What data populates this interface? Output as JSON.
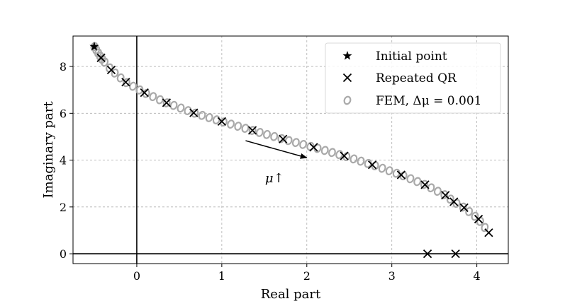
{
  "chart_data": {
    "type": "scatter",
    "xlabel": "Real part",
    "ylabel": "Imaginary part",
    "xlim": [
      -0.75,
      4.37
    ],
    "ylim": [
      -0.42,
      9.3
    ],
    "xticks": [
      0,
      1,
      2,
      3,
      4
    ],
    "yticks": [
      0,
      2,
      4,
      6,
      8
    ],
    "grid": true,
    "legend_position": "top-right",
    "reference_lines": {
      "x": 0,
      "y": 0
    },
    "annotation": {
      "text": "μ↑",
      "arrow_from": [
        1.28,
        4.83
      ],
      "arrow_to": [
        2.0,
        4.1
      ]
    },
    "series": [
      {
        "name": "Initial point",
        "marker": "star",
        "color": "#000000",
        "points": [
          [
            -0.5,
            8.85
          ]
        ]
      },
      {
        "name": "Repeated QR",
        "marker": "x",
        "color": "#000000",
        "points": [
          [
            -0.42,
            8.37
          ],
          [
            -0.3,
            7.85
          ],
          [
            -0.13,
            7.33
          ],
          [
            0.09,
            6.88
          ],
          [
            0.35,
            6.45
          ],
          [
            0.67,
            6.02
          ],
          [
            1.0,
            5.65
          ],
          [
            1.36,
            5.27
          ],
          [
            1.72,
            4.9
          ],
          [
            2.08,
            4.55
          ],
          [
            2.44,
            4.18
          ],
          [
            2.77,
            3.8
          ],
          [
            3.11,
            3.37
          ],
          [
            3.39,
            2.95
          ],
          [
            3.63,
            2.5
          ],
          [
            3.73,
            2.22
          ],
          [
            3.85,
            1.97
          ],
          [
            4.02,
            1.48
          ],
          [
            4.14,
            0.9
          ],
          [
            3.42,
            0.0
          ],
          [
            3.75,
            0.0
          ]
        ]
      },
      {
        "name": "FEM, Δμ = 0.001",
        "marker": "o",
        "color": "#a9a9a9",
        "path": [
          [
            -0.5,
            8.85
          ],
          [
            -0.42,
            8.37
          ],
          [
            -0.3,
            7.85
          ],
          [
            -0.13,
            7.33
          ],
          [
            0.09,
            6.88
          ],
          [
            0.35,
            6.45
          ],
          [
            0.67,
            6.02
          ],
          [
            1.0,
            5.65
          ],
          [
            1.36,
            5.27
          ],
          [
            1.72,
            4.9
          ],
          [
            2.08,
            4.55
          ],
          [
            2.44,
            4.18
          ],
          [
            2.77,
            3.8
          ],
          [
            3.11,
            3.37
          ],
          [
            3.39,
            2.95
          ],
          [
            3.63,
            2.5
          ],
          [
            3.73,
            2.22
          ],
          [
            3.85,
            1.97
          ],
          [
            4.02,
            1.48
          ],
          [
            4.14,
            0.9
          ]
        ]
      }
    ]
  }
}
